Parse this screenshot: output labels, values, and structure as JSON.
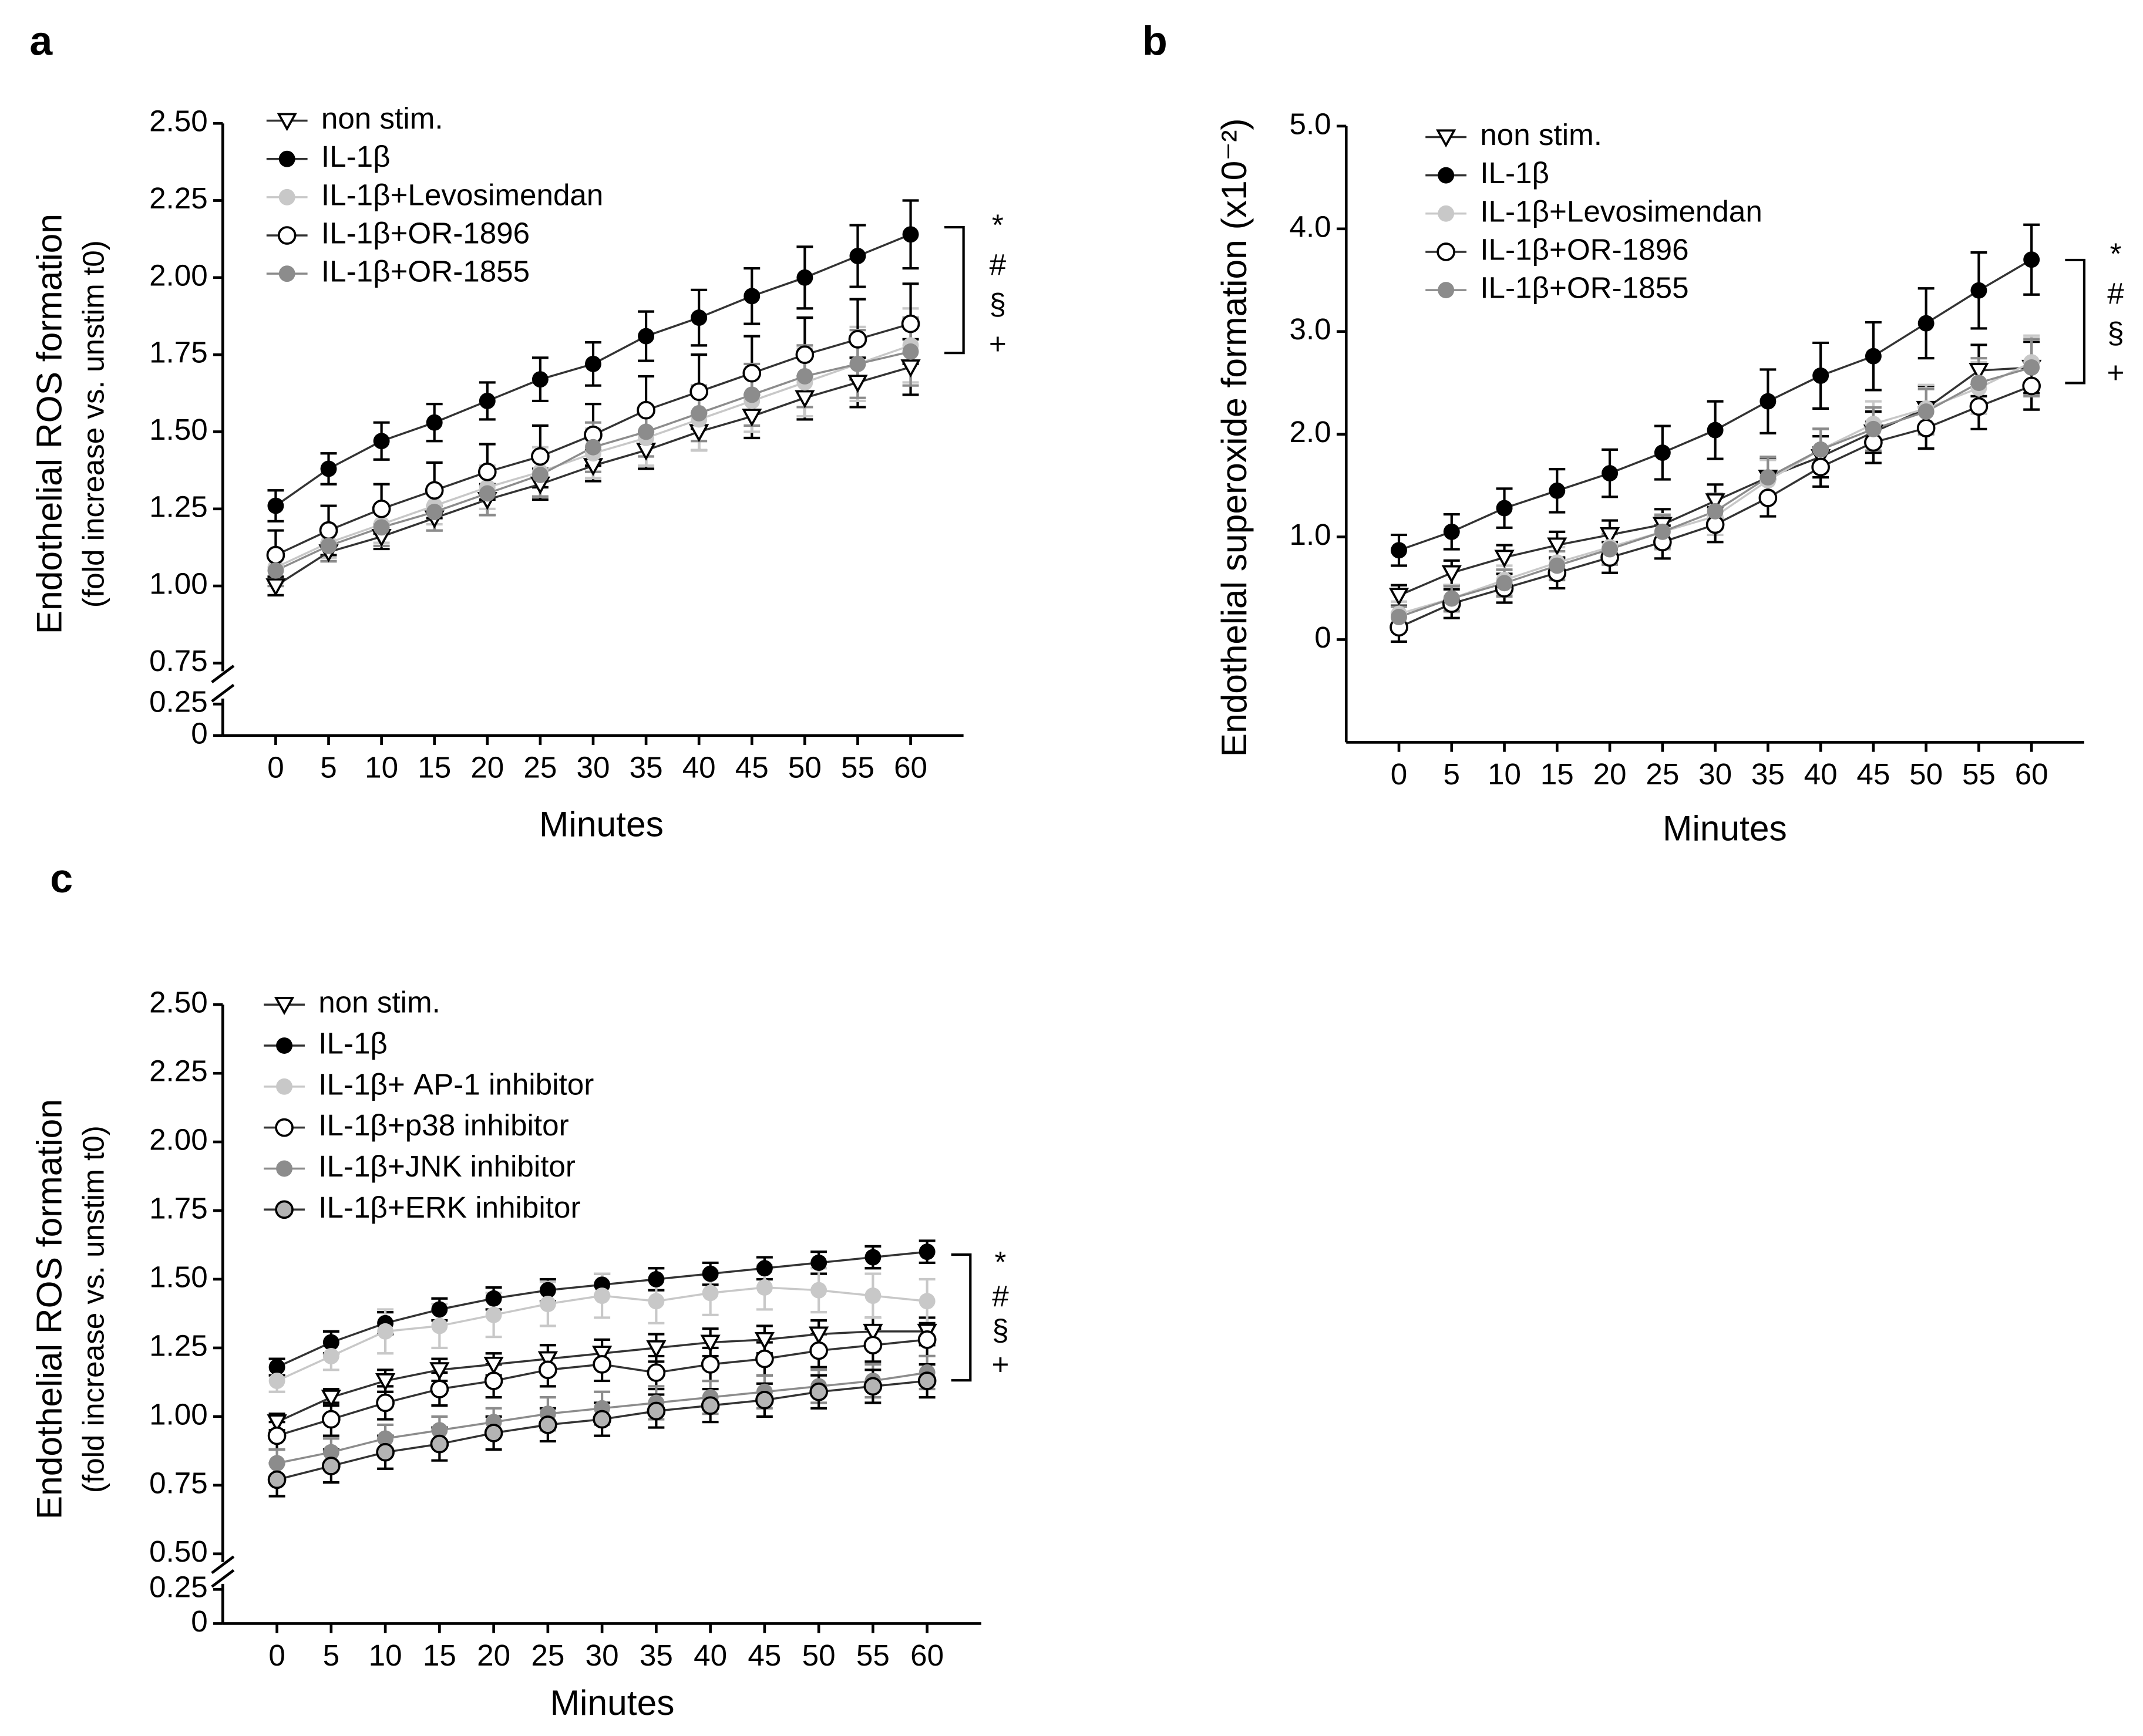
{
  "chart_data": [
    {
      "type": "line",
      "panel": "a",
      "xlabel": "Minutes",
      "ylabel": [
        "Endothelial ROS formation",
        "(fold increase vs. unstim t0)"
      ],
      "x": [
        0,
        5,
        10,
        15,
        20,
        25,
        30,
        35,
        40,
        45,
        50,
        55,
        60
      ],
      "xlim": [
        -5,
        65
      ],
      "xticks": [
        0,
        5,
        10,
        15,
        20,
        25,
        30,
        35,
        40,
        45,
        50,
        55,
        60
      ],
      "ylim": [
        0,
        2.5
      ],
      "y_break": [
        0.25,
        0.75
      ],
      "yticks": [
        0,
        0.25,
        0.75,
        {
          "value": 1,
          "label": "1.00"
        },
        1.25,
        {
          "value": 1.5,
          "label": "1.50"
        },
        1.75,
        {
          "value": 2,
          "label": "2.00"
        },
        2.25,
        {
          "value": 2.5,
          "label": "2.50"
        }
      ],
      "annotations": [
        "*",
        "#",
        "§",
        "+"
      ],
      "series": [
        {
          "name": "non stim.",
          "color": "#000000",
          "fill": "#ffffff",
          "marker": "triangle",
          "values": [
            1.0,
            1.11,
            1.16,
            1.22,
            1.28,
            1.33,
            1.39,
            1.44,
            1.5,
            1.55,
            1.61,
            1.66,
            1.71
          ],
          "errors": [
            0.03,
            0.03,
            0.04,
            0.04,
            0.05,
            0.05,
            0.05,
            0.06,
            0.06,
            0.07,
            0.07,
            0.08,
            0.09
          ]
        },
        {
          "name": "IL-1β",
          "color": "#000000",
          "fill": "#000000",
          "marker": "circle",
          "values": [
            1.26,
            1.38,
            1.47,
            1.53,
            1.6,
            1.67,
            1.72,
            1.81,
            1.87,
            1.94,
            2.0,
            2.07,
            2.14
          ],
          "errors": [
            0.05,
            0.05,
            0.06,
            0.06,
            0.06,
            0.07,
            0.07,
            0.08,
            0.09,
            0.09,
            0.1,
            0.1,
            0.11
          ]
        },
        {
          "name": "IL-1β+Levosimendan",
          "color": "#c8c8c8",
          "fill": "#c8c8c8",
          "marker": "circle",
          "values": [
            1.06,
            1.14,
            1.2,
            1.26,
            1.32,
            1.37,
            1.43,
            1.48,
            1.54,
            1.6,
            1.66,
            1.72,
            1.78
          ],
          "errors": [
            0.05,
            0.05,
            0.06,
            0.06,
            0.07,
            0.08,
            0.08,
            0.09,
            0.1,
            0.1,
            0.11,
            0.12,
            0.12
          ]
        },
        {
          "name": "IL-1β+OR-1896",
          "color": "#000000",
          "fill": "#ffffff",
          "marker": "circle",
          "values": [
            1.1,
            1.18,
            1.25,
            1.31,
            1.37,
            1.42,
            1.49,
            1.57,
            1.63,
            1.69,
            1.75,
            1.8,
            1.85
          ],
          "errors": [
            0.08,
            0.08,
            0.08,
            0.09,
            0.09,
            0.1,
            0.1,
            0.11,
            0.12,
            0.12,
            0.12,
            0.13,
            0.13
          ]
        },
        {
          "name": "IL-1β+OR-1855",
          "color": "#8c8c8c",
          "fill": "#8c8c8c",
          "marker": "circle",
          "values": [
            1.05,
            1.13,
            1.19,
            1.24,
            1.3,
            1.36,
            1.45,
            1.5,
            1.56,
            1.62,
            1.68,
            1.72,
            1.76
          ],
          "errors": [
            0.05,
            0.05,
            0.06,
            0.06,
            0.07,
            0.07,
            0.08,
            0.08,
            0.09,
            0.1,
            0.1,
            0.11,
            0.11
          ]
        }
      ]
    },
    {
      "type": "line",
      "panel": "b",
      "xlabel": "Minutes",
      "ylabel": [
        "Endothelial superoxide formation (x10⁻²)"
      ],
      "x": [
        0,
        5,
        10,
        15,
        20,
        25,
        30,
        35,
        40,
        45,
        50,
        55,
        60
      ],
      "xlim": [
        -5,
        65
      ],
      "xticks": [
        0,
        5,
        10,
        15,
        20,
        25,
        30,
        35,
        40,
        45,
        50,
        55,
        60
      ],
      "ylim": [
        -1,
        5
      ],
      "yticks": [
        0,
        {
          "value": 1,
          "label": "1.0"
        },
        {
          "value": 2,
          "label": "2.0"
        },
        {
          "value": 3,
          "label": "3.0"
        },
        {
          "value": 4,
          "label": "4.0"
        },
        {
          "value": 5,
          "label": "5.0"
        }
      ],
      "annotations": [
        "*",
        "#",
        "§",
        "+"
      ],
      "series": [
        {
          "name": "non stim.",
          "color": "#000000",
          "fill": "#ffffff",
          "marker": "triangle",
          "values": [
            0.43,
            0.65,
            0.8,
            0.92,
            1.02,
            1.12,
            1.35,
            1.58,
            1.78,
            2.02,
            2.25,
            2.62,
            2.65
          ],
          "errors": [
            0.1,
            0.12,
            0.12,
            0.13,
            0.14,
            0.15,
            0.16,
            0.18,
            0.2,
            0.2,
            0.22,
            0.25,
            0.25
          ]
        },
        {
          "name": "IL-1β",
          "color": "#000000",
          "fill": "#000000",
          "marker": "circle",
          "values": [
            0.87,
            1.05,
            1.28,
            1.45,
            1.62,
            1.82,
            2.04,
            2.32,
            2.57,
            2.76,
            3.08,
            3.4,
            3.7
          ],
          "errors": [
            0.15,
            0.17,
            0.19,
            0.21,
            0.23,
            0.26,
            0.28,
            0.31,
            0.32,
            0.33,
            0.34,
            0.37,
            0.34
          ]
        },
        {
          "name": "IL-1β+Levosimendan",
          "color": "#c8c8c8",
          "fill": "#c8c8c8",
          "marker": "circle",
          "values": [
            0.25,
            0.4,
            0.58,
            0.75,
            0.9,
            1.05,
            1.2,
            1.55,
            1.85,
            2.1,
            2.25,
            2.45,
            2.7
          ],
          "errors": [
            0.12,
            0.13,
            0.14,
            0.15,
            0.16,
            0.17,
            0.18,
            0.2,
            0.21,
            0.22,
            0.23,
            0.25,
            0.26
          ]
        },
        {
          "name": "IL-1β+OR-1896",
          "color": "#000000",
          "fill": "#ffffff",
          "marker": "circle",
          "values": [
            0.12,
            0.35,
            0.5,
            0.65,
            0.8,
            0.95,
            1.12,
            1.38,
            1.68,
            1.92,
            2.06,
            2.27,
            2.47
          ],
          "errors": [
            0.14,
            0.14,
            0.14,
            0.15,
            0.15,
            0.16,
            0.17,
            0.18,
            0.19,
            0.2,
            0.2,
            0.22,
            0.23
          ]
        },
        {
          "name": "IL-1β+OR-1855",
          "color": "#8c8c8c",
          "fill": "#8c8c8c",
          "marker": "circle",
          "values": [
            0.22,
            0.4,
            0.55,
            0.72,
            0.88,
            1.05,
            1.25,
            1.58,
            1.85,
            2.05,
            2.22,
            2.5,
            2.65
          ],
          "errors": [
            0.1,
            0.12,
            0.13,
            0.14,
            0.15,
            0.16,
            0.17,
            0.2,
            0.2,
            0.21,
            0.22,
            0.24,
            0.28
          ]
        }
      ]
    },
    {
      "type": "line",
      "panel": "c",
      "xlabel": "Minutes",
      "ylabel": [
        "Endothelial ROS formation",
        "(fold increase vs. unstim t0)"
      ],
      "x": [
        0,
        5,
        10,
        15,
        20,
        25,
        30,
        35,
        40,
        45,
        50,
        55,
        60
      ],
      "xlim": [
        -5,
        65
      ],
      "xticks": [
        0,
        5,
        10,
        15,
        20,
        25,
        30,
        35,
        40,
        45,
        50,
        55,
        60
      ],
      "ylim": [
        0,
        2.5
      ],
      "y_break": [
        0.25,
        0.5
      ],
      "yticks": [
        0,
        0.25,
        {
          "value": 0.5,
          "label": "0.50"
        },
        0.75,
        {
          "value": 1,
          "label": "1.00"
        },
        1.25,
        {
          "value": 1.5,
          "label": "1.50"
        },
        1.75,
        {
          "value": 2,
          "label": "2.00"
        },
        2.25,
        {
          "value": 2.5,
          "label": "2.50"
        }
      ],
      "annotations": [
        "*",
        "#",
        "§",
        "+"
      ],
      "series": [
        {
          "name": "non stim.",
          "color": "#000000",
          "fill": "#ffffff",
          "marker": "triangle",
          "values": [
            0.98,
            1.07,
            1.13,
            1.17,
            1.19,
            1.21,
            1.23,
            1.25,
            1.27,
            1.28,
            1.3,
            1.31,
            1.31
          ],
          "errors": [
            0.03,
            0.03,
            0.04,
            0.04,
            0.04,
            0.05,
            0.05,
            0.05,
            0.05,
            0.05,
            0.05,
            0.05,
            0.05
          ]
        },
        {
          "name": "IL-1β",
          "color": "#000000",
          "fill": "#000000",
          "marker": "circle",
          "values": [
            1.18,
            1.27,
            1.34,
            1.39,
            1.43,
            1.46,
            1.48,
            1.5,
            1.52,
            1.54,
            1.56,
            1.58,
            1.6
          ],
          "errors": [
            0.03,
            0.04,
            0.04,
            0.04,
            0.04,
            0.04,
            0.04,
            0.04,
            0.04,
            0.04,
            0.04,
            0.04,
            0.04
          ]
        },
        {
          "name": "IL-1β+ AP-1 inhibitor",
          "color": "#c8c8c8",
          "fill": "#c8c8c8",
          "marker": "circle",
          "values": [
            1.13,
            1.22,
            1.31,
            1.33,
            1.37,
            1.41,
            1.44,
            1.42,
            1.45,
            1.47,
            1.46,
            1.44,
            1.42
          ],
          "errors": [
            0.04,
            0.05,
            0.08,
            0.08,
            0.08,
            0.08,
            0.08,
            0.08,
            0.08,
            0.08,
            0.08,
            0.08,
            0.08
          ]
        },
        {
          "name": "IL-1β+p38 inhibitor",
          "color": "#000000",
          "fill": "#ffffff",
          "marker": "circle",
          "values": [
            0.93,
            0.99,
            1.05,
            1.1,
            1.13,
            1.17,
            1.19,
            1.16,
            1.19,
            1.21,
            1.24,
            1.26,
            1.28
          ],
          "errors": [
            0.05,
            0.06,
            0.06,
            0.06,
            0.06,
            0.06,
            0.06,
            0.06,
            0.06,
            0.06,
            0.06,
            0.06,
            0.06
          ]
        },
        {
          "name": "IL-1β+JNK inhibitor",
          "color": "#8c8c8c",
          "fill": "#8c8c8c",
          "marker": "circle",
          "values": [
            0.83,
            0.87,
            0.92,
            0.95,
            0.98,
            1.01,
            1.03,
            1.05,
            1.07,
            1.09,
            1.11,
            1.13,
            1.16
          ],
          "errors": [
            0.05,
            0.05,
            0.05,
            0.05,
            0.05,
            0.06,
            0.06,
            0.06,
            0.06,
            0.06,
            0.06,
            0.06,
            0.06
          ]
        },
        {
          "name": "IL-1β+ERK inhibitor",
          "color": "#000000",
          "fill": "#b4b4b4",
          "marker": "circle",
          "values": [
            0.77,
            0.82,
            0.87,
            0.9,
            0.94,
            0.97,
            0.99,
            1.02,
            1.04,
            1.06,
            1.09,
            1.11,
            1.13
          ],
          "errors": [
            0.06,
            0.06,
            0.06,
            0.06,
            0.06,
            0.06,
            0.06,
            0.06,
            0.06,
            0.06,
            0.06,
            0.06,
            0.06
          ]
        }
      ]
    }
  ]
}
